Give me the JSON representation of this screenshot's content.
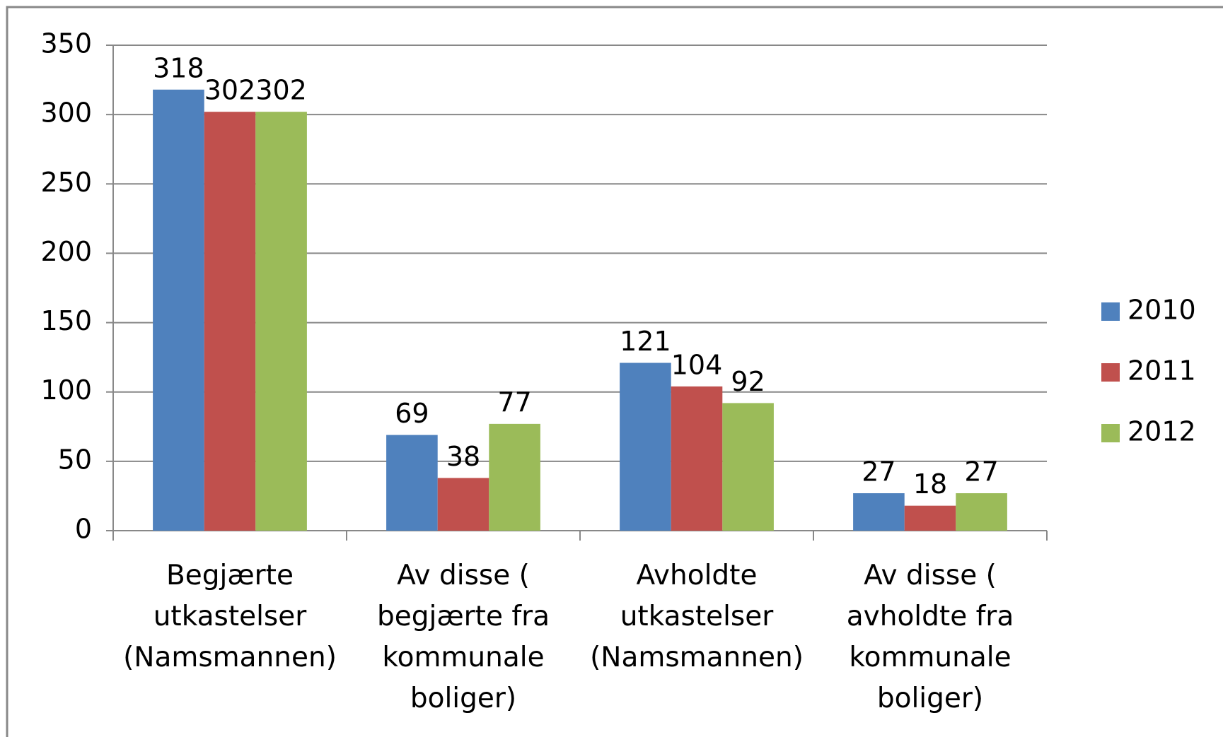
{
  "chart_data": {
    "type": "bar",
    "categories": [
      "Begjærte\nutkastelser\n(Namsmannen)",
      "Av disse (\nbegjærte fra\nkommunale\nboliger)",
      "Avholdte\nutkastelser\n(Namsmannen)",
      "Av disse (\navholdte fra\nkommunale\nboliger)"
    ],
    "series": [
      {
        "name": "2010",
        "color": "#4f81bd",
        "values": [
          318,
          69,
          121,
          27
        ]
      },
      {
        "name": "2011",
        "color": "#c0504d",
        "values": [
          302,
          38,
          104,
          18
        ]
      },
      {
        "name": "2012",
        "color": "#9bbb59",
        "values": [
          302,
          77,
          92,
          27
        ]
      }
    ],
    "ylim": [
      0,
      350
    ],
    "yticks": [
      0,
      50,
      100,
      150,
      200,
      250,
      300,
      350
    ],
    "grid": true,
    "legend": "right"
  }
}
